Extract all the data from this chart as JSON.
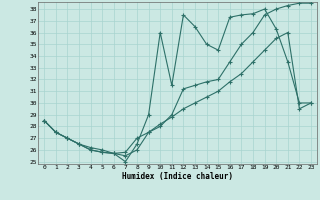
{
  "xlabel": "Humidex (Indice chaleur)",
  "bg_color": "#cbe8e3",
  "grid_color": "#a8d4cf",
  "line_color": "#2d7068",
  "xlim": [
    -0.5,
    23.5
  ],
  "ylim": [
    24.8,
    38.6
  ],
  "yticks": [
    25,
    26,
    27,
    28,
    29,
    30,
    31,
    32,
    33,
    34,
    35,
    36,
    37,
    38
  ],
  "xticks": [
    0,
    1,
    2,
    3,
    4,
    5,
    6,
    7,
    8,
    9,
    10,
    11,
    12,
    13,
    14,
    15,
    16,
    17,
    18,
    19,
    20,
    21,
    22,
    23
  ],
  "line1_x": [
    0,
    1,
    2,
    3,
    4,
    5,
    6,
    7,
    8,
    9,
    10,
    11,
    12,
    13,
    14,
    15,
    16,
    17,
    18,
    19,
    20,
    21,
    22,
    23
  ],
  "line1_y": [
    28.5,
    27.5,
    27.0,
    26.5,
    26.2,
    26.0,
    25.7,
    25.0,
    26.5,
    29.0,
    36.0,
    31.5,
    37.5,
    36.5,
    35.0,
    34.5,
    37.3,
    37.5,
    37.6,
    38.0,
    36.3,
    33.5,
    30.0,
    30.0
  ],
  "line2_x": [
    0,
    1,
    2,
    3,
    4,
    5,
    6,
    7,
    8,
    9,
    10,
    11,
    12,
    13,
    14,
    15,
    16,
    17,
    18,
    19,
    20,
    21,
    22,
    23
  ],
  "line2_y": [
    28.5,
    27.5,
    27.0,
    26.5,
    26.0,
    25.8,
    25.7,
    25.8,
    27.0,
    27.5,
    28.0,
    29.0,
    31.2,
    31.5,
    31.8,
    32.0,
    33.5,
    35.0,
    36.0,
    37.5,
    38.0,
    38.3,
    38.5,
    38.5
  ],
  "line3_x": [
    0,
    1,
    2,
    3,
    4,
    5,
    6,
    7,
    8,
    9,
    10,
    11,
    12,
    13,
    14,
    15,
    16,
    17,
    18,
    19,
    20,
    21,
    22,
    23
  ],
  "line3_y": [
    28.5,
    27.5,
    27.0,
    26.5,
    26.0,
    25.8,
    25.7,
    25.5,
    26.0,
    27.5,
    28.2,
    28.8,
    29.5,
    30.0,
    30.5,
    31.0,
    31.8,
    32.5,
    33.5,
    34.5,
    35.5,
    36.0,
    29.5,
    30.0
  ]
}
